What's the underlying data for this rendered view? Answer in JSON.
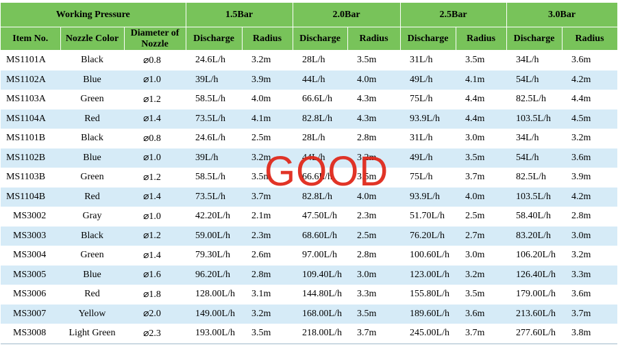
{
  "header": {
    "working_pressure": "Working Pressure",
    "pressures": [
      "1.5Bar",
      "2.0Bar",
      "2.5Bar",
      "3.0Bar"
    ],
    "item_no": "Item No.",
    "nozzle_color": "Nozzle Color",
    "diameter_line1": "Diameter of",
    "diameter_line2": "Nozzle",
    "discharge": "Discharge",
    "radius": "Radius"
  },
  "rows": [
    [
      "MS1101A",
      "Black",
      "⌀0.8",
      "24.6L/h",
      "3.2m",
      "28L/h",
      "3.5m",
      "31L/h",
      "3.5m",
      "34L/h",
      "3.6m"
    ],
    [
      "MS1102A",
      "Blue",
      "⌀1.0",
      "39L/h",
      "3.9m",
      "44L/h",
      "4.0m",
      "49L/h",
      "4.1m",
      "54L/h",
      "4.2m"
    ],
    [
      "MS1103A",
      "Green",
      "⌀1.2",
      "58.5L/h",
      "4.0m",
      "66.6L/h",
      "4.3m",
      "75L/h",
      "4.4m",
      "82.5L/h",
      "4.4m"
    ],
    [
      "MS1104A",
      "Red",
      "⌀1.4",
      "73.5L/h",
      "4.1m",
      "82.8L/h",
      "4.3m",
      "93.9L/h",
      "4.4m",
      "103.5L/h",
      "4.5m"
    ],
    [
      "MS1101B",
      "Black",
      "⌀0.8",
      "24.6L/h",
      "2.5m",
      "28L/h",
      "2.8m",
      "31L/h",
      "3.0m",
      "34L/h",
      "3.2m"
    ],
    [
      "MS1102B",
      "Blue",
      "⌀1.0",
      "39L/h",
      "3.2m",
      "44L/h",
      "3.2m",
      "49L/h",
      "3.5m",
      "54L/h",
      "3.6m"
    ],
    [
      "MS1103B",
      "Green",
      "⌀1.2",
      "58.5L/h",
      "3.5m",
      "66.6L/h",
      "3.5m",
      "75L/h",
      "3.7m",
      "82.5L/h",
      "3.9m"
    ],
    [
      "MS1104B",
      "Red",
      "⌀1.4",
      "73.5L/h",
      "3.7m",
      "82.8L/h",
      "4.0m",
      "93.9L/h",
      "4.0m",
      "103.5L/h",
      "4.2m"
    ],
    [
      "MS3002",
      "Gray",
      "⌀1.0",
      "42.20L/h",
      "2.1m",
      "47.50L/h",
      "2.3m",
      "51.70L/h",
      "2.5m",
      "58.40L/h",
      "2.8m"
    ],
    [
      "MS3003",
      "Black",
      "⌀1.2",
      "59.00L/h",
      "2.3m",
      "68.60L/h",
      "2.5m",
      "76.20L/h",
      "2.7m",
      "83.20L/h",
      "3.0m"
    ],
    [
      "MS3004",
      "Green",
      "⌀1.4",
      "79.30L/h",
      "2.6m",
      "97.00L/h",
      "2.8m",
      "100.60L/h",
      "3.0m",
      "106.20L/h",
      "3.2m"
    ],
    [
      "MS3005",
      "Blue",
      "⌀1.6",
      "96.20L/h",
      "2.8m",
      "109.40L/h",
      "3.0m",
      "123.00L/h",
      "3.2m",
      "126.40L/h",
      "3.3m"
    ],
    [
      "MS3006",
      "Red",
      "⌀1.8",
      "128.00L/h",
      "3.1m",
      "144.80L/h",
      "3.3m",
      "155.80L/h",
      "3.5m",
      "179.00L/h",
      "3.6m"
    ],
    [
      "MS3007",
      "Yellow",
      "⌀2.0",
      "149.00L/h",
      "3.2m",
      "168.00L/h",
      "3.5m",
      "189.60L/h",
      "3.6m",
      "213.60L/h",
      "3.7m"
    ],
    [
      "MS3008",
      "Light Green",
      "⌀2.3",
      "193.00L/h",
      "3.5m",
      "218.00L/h",
      "3.7m",
      "245.00L/h",
      "3.7m",
      "277.60L/h",
      "3.8m"
    ]
  ],
  "watermark": "GOOD",
  "colors": {
    "header_bg": "#78c35a",
    "alt_row_bg": "#d6ebf7",
    "watermark": "#e02a1c"
  }
}
